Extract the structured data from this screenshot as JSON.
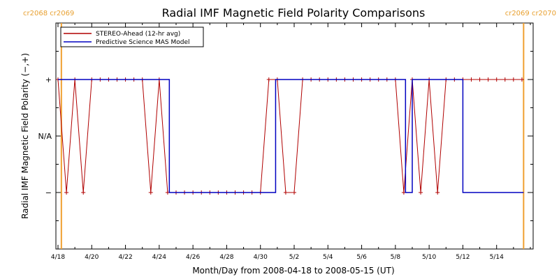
{
  "chart_data": {
    "type": "line",
    "title": "Radial IMF Magnetic Field Polarity Comparisons",
    "xlabel": "Month/Day from 2008-04-18 to 2008-05-15 (UT)",
    "ylabel": "Radial IMF Magnetic Field Polarity (−,+)",
    "x_unit": "days since 2008-04-18",
    "xlim": [
      0,
      28
    ],
    "ylim": [
      -2,
      2
    ],
    "y_ticks": [
      {
        "value": 1,
        "label": "+"
      },
      {
        "value": 0,
        "label": "N/A"
      },
      {
        "value": -1,
        "label": "−"
      }
    ],
    "x_ticks": [
      {
        "value": 0,
        "label": "4/18"
      },
      {
        "value": 2,
        "label": "4/20"
      },
      {
        "value": 4,
        "label": "4/22"
      },
      {
        "value": 6,
        "label": "4/24"
      },
      {
        "value": 8,
        "label": "4/26"
      },
      {
        "value": 10,
        "label": "4/28"
      },
      {
        "value": 12,
        "label": "4/30"
      },
      {
        "value": 14,
        "label": "5/2"
      },
      {
        "value": 16,
        "label": "5/4"
      },
      {
        "value": 18,
        "label": "5/6"
      },
      {
        "value": 20,
        "label": "5/8"
      },
      {
        "value": 22,
        "label": "5/10"
      },
      {
        "value": 24,
        "label": "5/12"
      },
      {
        "value": 26,
        "label": "5/14"
      }
    ],
    "carrington_markers": [
      {
        "x": 0.2,
        "label": "cr2068 cr2069",
        "align": "left"
      },
      {
        "x": 27.6,
        "label": "cr2069 cr2070",
        "align": "right"
      }
    ],
    "legend_placement": "top-left",
    "series": [
      {
        "name": "STEREO-Ahead (12-hr avg)",
        "color": "#b00000",
        "x": [
          0,
          0.5,
          1,
          1.5,
          2,
          2.5,
          3,
          3.5,
          4,
          4.5,
          5,
          5.5,
          6,
          6.5,
          7,
          7.5,
          8,
          8.5,
          9,
          9.5,
          10,
          10.5,
          11,
          11.5,
          12,
          12.5,
          13,
          13.5,
          14,
          14.5,
          15,
          15.5,
          16,
          16.5,
          17,
          17.5,
          18,
          18.5,
          19,
          19.5,
          20,
          20.5,
          21,
          21.5,
          22,
          22.5,
          23,
          23.5,
          24,
          24.5,
          25,
          25.5,
          26,
          26.5,
          27,
          27.5
        ],
        "y": [
          1,
          -1,
          1,
          -1,
          1,
          1,
          1,
          1,
          1,
          1,
          1,
          -1,
          1,
          -1,
          -1,
          -1,
          -1,
          -1,
          -1,
          -1,
          -1,
          -1,
          -1,
          -1,
          -1,
          1,
          1,
          -1,
          -1,
          1,
          1,
          1,
          1,
          1,
          1,
          1,
          1,
          1,
          1,
          1,
          1,
          -1,
          1,
          -1,
          1,
          -1,
          1,
          1,
          1,
          1,
          1,
          1,
          1,
          1,
          1,
          1
        ]
      },
      {
        "name": "Predictive Science MAS Model",
        "color": "#0000c0",
        "steps": [
          {
            "x": 0.0,
            "y": 1
          },
          {
            "x": 6.6,
            "y": -1
          },
          {
            "x": 12.9,
            "y": 1
          },
          {
            "x": 20.6,
            "y": -1
          },
          {
            "x": 21.0,
            "y": 1
          },
          {
            "x": 24.0,
            "y": -1
          },
          {
            "x": 27.6,
            "y": -1
          }
        ]
      }
    ]
  }
}
